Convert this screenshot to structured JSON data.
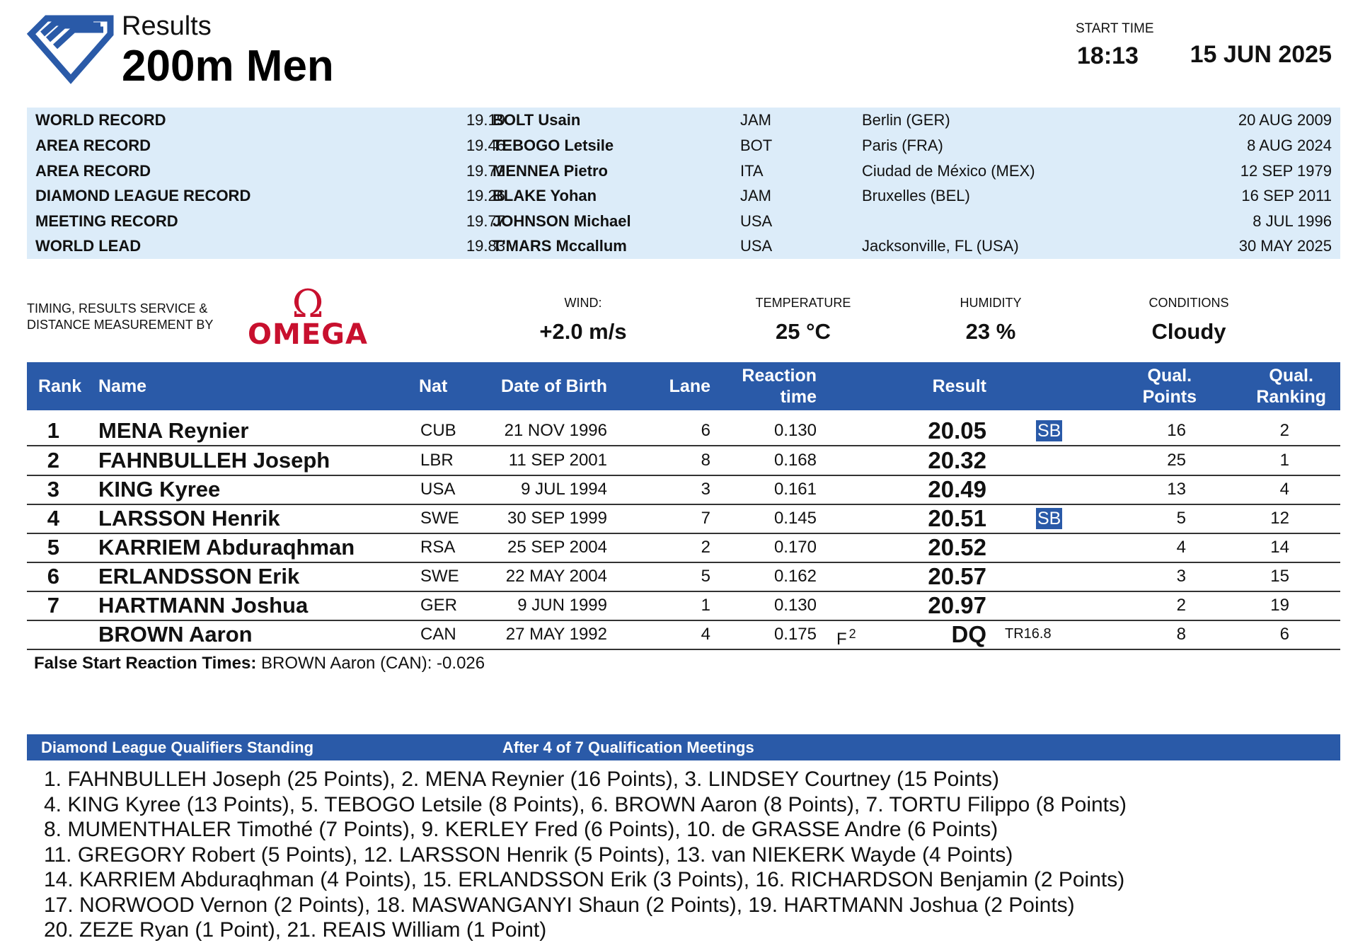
{
  "header": {
    "subtitle": "Results",
    "title": "200m Men",
    "start_time_label": "START TIME",
    "start_time": "18:13",
    "date": "15 JUN 2025"
  },
  "records": [
    {
      "label": "WORLD RECORD",
      "value": "19.19",
      "name": "BOLT Usain",
      "nat": "JAM",
      "venue": "Berlin (GER)",
      "date": "20 AUG 2009"
    },
    {
      "label": "AREA RECORD",
      "value": "19.46",
      "name": "TEBOGO Letsile",
      "nat": "BOT",
      "venue": "Paris (FRA)",
      "date": "8 AUG 2024"
    },
    {
      "label": "AREA RECORD",
      "value": "19.72",
      "name": "MENNEA Pietro",
      "nat": "ITA",
      "venue": "Ciudad de México (MEX)",
      "date": "12 SEP 1979"
    },
    {
      "label": "DIAMOND LEAGUE RECORD",
      "value": "19.26",
      "name": "BLAKE Yohan",
      "nat": "JAM",
      "venue": "Bruxelles (BEL)",
      "date": "16 SEP 2011"
    },
    {
      "label": "MEETING RECORD",
      "value": "19.77",
      "name": "JOHNSON Michael",
      "nat": "USA",
      "venue": "",
      "date": "8 JUL 1996"
    },
    {
      "label": "WORLD LEAD",
      "value": "19.83",
      "name": "T'MARS Mccallum",
      "nat": "USA",
      "venue": "Jacksonville, FL (USA)",
      "date": "30 MAY 2025"
    }
  ],
  "timing": {
    "line1": "TIMING, RESULTS SERVICE &",
    "line2": "DISTANCE MEASUREMENT BY",
    "brand": "OMEGA",
    "brand_color": "#c8102e"
  },
  "conditions": {
    "wind_label": "WIND:",
    "wind": "+2.0 m/s",
    "temperature_label": "TEMPERATURE",
    "temperature": "25 °C",
    "humidity_label": "HUMIDITY",
    "humidity": "23 %",
    "conditions_label": "CONDITIONS",
    "conditions": "Cloudy"
  },
  "table": {
    "headers": {
      "rank": "Rank",
      "name": "Name",
      "nat": "Nat",
      "dob": "Date of Birth",
      "lane": "Lane",
      "reaction_1": "Reaction",
      "reaction_2": "time",
      "result": "Result",
      "qual_points_1": "Qual.",
      "qual_points_2": "Points",
      "qual_ranking_1": "Qual.",
      "qual_ranking_2": "Ranking"
    },
    "rows": [
      {
        "rank": "1",
        "name": "MENA Reynier",
        "nat": "CUB",
        "dob": "21 NOV 1996",
        "lane": "6",
        "reaction": "0.130",
        "flag": "",
        "flag_sup": "",
        "result": "20.05",
        "badge": "SB",
        "rule": "",
        "qual_points": "16",
        "qual_ranking": "2"
      },
      {
        "rank": "2",
        "name": "FAHNBULLEH Joseph",
        "nat": "LBR",
        "dob": "11 SEP 2001",
        "lane": "8",
        "reaction": "0.168",
        "flag": "",
        "flag_sup": "",
        "result": "20.32",
        "badge": "",
        "rule": "",
        "qual_points": "25",
        "qual_ranking": "1"
      },
      {
        "rank": "3",
        "name": "KING Kyree",
        "nat": "USA",
        "dob": "9 JUL 1994",
        "lane": "3",
        "reaction": "0.161",
        "flag": "",
        "flag_sup": "",
        "result": "20.49",
        "badge": "",
        "rule": "",
        "qual_points": "13",
        "qual_ranking": "4"
      },
      {
        "rank": "4",
        "name": "LARSSON Henrik",
        "nat": "SWE",
        "dob": "30 SEP 1999",
        "lane": "7",
        "reaction": "0.145",
        "flag": "",
        "flag_sup": "",
        "result": "20.51",
        "badge": "SB",
        "rule": "",
        "qual_points": "5",
        "qual_ranking": "12"
      },
      {
        "rank": "5",
        "name": "KARRIEM Abduraqhman",
        "nat": "RSA",
        "dob": "25 SEP 2004",
        "lane": "2",
        "reaction": "0.170",
        "flag": "",
        "flag_sup": "",
        "result": "20.52",
        "badge": "",
        "rule": "",
        "qual_points": "4",
        "qual_ranking": "14"
      },
      {
        "rank": "6",
        "name": "ERLANDSSON Erik",
        "nat": "SWE",
        "dob": "22 MAY 2004",
        "lane": "5",
        "reaction": "0.162",
        "flag": "",
        "flag_sup": "",
        "result": "20.57",
        "badge": "",
        "rule": "",
        "qual_points": "3",
        "qual_ranking": "15"
      },
      {
        "rank": "7",
        "name": "HARTMANN Joshua",
        "nat": "GER",
        "dob": "9 JUN 1999",
        "lane": "1",
        "reaction": "0.130",
        "flag": "",
        "flag_sup": "",
        "result": "20.97",
        "badge": "",
        "rule": "",
        "qual_points": "2",
        "qual_ranking": "19"
      },
      {
        "rank": "",
        "name": "BROWN Aaron",
        "nat": "CAN",
        "dob": "27 MAY 1992",
        "lane": "4",
        "reaction": "0.175",
        "flag": "F",
        "flag_sup": "2",
        "result": "DQ",
        "badge": "",
        "rule": "TR16.8",
        "qual_points": "8",
        "qual_ranking": "6"
      }
    ]
  },
  "false_start": {
    "label": "False Start Reaction Times:",
    "text": "BROWN Aaron (CAN): -0.026"
  },
  "standings": {
    "title": "Diamond League Qualifiers Standing",
    "subtitle": "After 4 of 7 Qualification Meetings",
    "lines": [
      "1. FAHNBULLEH Joseph (25 Points), 2. MENA Reynier (16 Points), 3. LINDSEY Courtney (15 Points)",
      "4. KING Kyree (13 Points), 5. TEBOGO Letsile (8 Points), 6. BROWN Aaron (8 Points), 7. TORTU Filippo (8 Points)",
      "8. MUMENTHALER Timothé (7 Points), 9. KERLEY Fred (6 Points), 10. de GRASSE Andre (6 Points)",
      "11. GREGORY Robert (5 Points), 12. LARSSON Henrik (5 Points), 13. van NIEKERK Wayde (4 Points)",
      "14. KARRIEM Abduraqhman (4 Points), 15. ERLANDSSON Erik (3 Points), 16. RICHARDSON Benjamin (2 Points)",
      "17. NORWOOD Vernon (2 Points), 18. MASWANGANYI Shaun (2 Points), 19. HARTMANN Joshua (2 Points)",
      "20. ZEZE Ryan (1 Point), 21. REAIS William (1 Point)"
    ]
  },
  "colors": {
    "accent_blue": "#2a5aa8",
    "records_bg": "#dcecf9",
    "omega_red": "#c8102e"
  }
}
